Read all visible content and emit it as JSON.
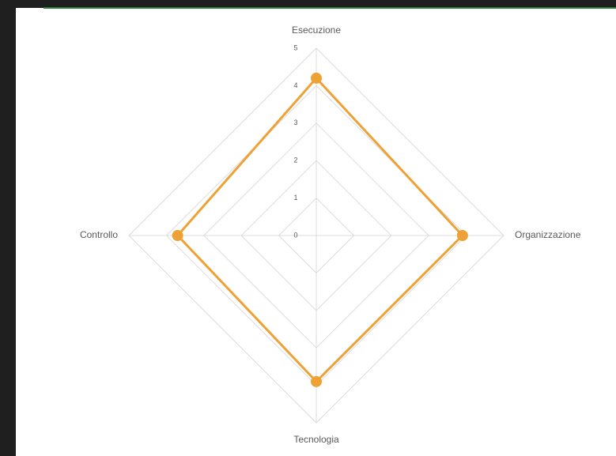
{
  "chart_data": {
    "type": "radar",
    "categories": [
      "Esecuzione",
      "Organizzazione",
      "Tecnologia",
      "Controllo"
    ],
    "series": [
      {
        "color": "#eea236",
        "values": [
          4.2,
          3.9,
          3.9,
          3.7
        ]
      }
    ],
    "ylim": [
      0,
      5
    ],
    "yticks": [
      0,
      1,
      2,
      3,
      4,
      5
    ],
    "grid": true
  }
}
